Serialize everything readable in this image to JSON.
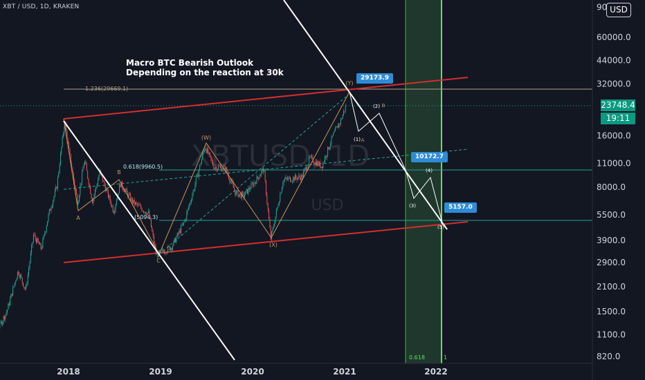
{
  "header": {
    "symbol": "XBT / USD, 1D, KRAKEN",
    "headline_line1": "Macro BTC Bearish Outlook",
    "headline_line2": "Depending on the reaction at 30k",
    "currency_button": "USD",
    "watermark_symbol": "XBTUSD, 1D",
    "watermark_currency": "USD"
  },
  "price_axis": {
    "ticks": [
      "820.0",
      "1100.0",
      "1500.0",
      "2100.0",
      "2900.0",
      "3900.0",
      "5500.0",
      "8000.0",
      "11000.0",
      "16000.0",
      "23748.4",
      "32000.0",
      "44000.0",
      "60000.0",
      "90000.0"
    ],
    "last_price": "23748.4",
    "countdown": "19:11"
  },
  "time_axis": {
    "ticks": [
      "2018",
      "2019",
      "2020",
      "2021",
      "2022"
    ]
  },
  "callouts": {
    "top": "29173.9",
    "mid": "10172.7",
    "low": "5157.0"
  },
  "fib_labels": {
    "ext": "1.236(29669.1)",
    "ret618": "0.618(9960.5)",
    "ret_low": "(5094.3)",
    "time_a": "0.618",
    "time_b": "1"
  },
  "wave_labels": {
    "Y": "(Y)",
    "W": "(W)",
    "X": "(X)",
    "A1": "A",
    "B1": "B",
    "C1": "C",
    "w1": "(1)",
    "w2": "(2)",
    "w3": "(3)",
    "w4": "(4)",
    "w5": "(5)",
    "wA": "A",
    "wB": "B"
  },
  "colors": {
    "background": "#131722",
    "channel": "#d32f2f",
    "fib_line": "#26a69a",
    "time_zone": "#4caf50",
    "wave": "#c8955a",
    "callout": "#2f8bd6",
    "up_candle": "#26a69a",
    "down_candle": "#ef5350"
  },
  "chart_data": {
    "type": "line",
    "title": "Macro BTC Bearish Outlook",
    "xlabel": "",
    "ylabel": "",
    "y_scale": "log",
    "ylim": [
      800,
      100000
    ],
    "x_range": [
      "2017-01-01",
      "2022-04-15"
    ],
    "grid": false,
    "series": [
      {
        "values": [
          {
            "x": "2017-01-01",
            "y": 1000
          },
          {
            "x": "2017-03-15",
            "y": 1100
          },
          {
            "x": "2017-05-01",
            "y": 1500
          },
          {
            "x": "2017-06-15",
            "y": 2600
          },
          {
            "x": "2017-07-15",
            "y": 2000
          },
          {
            "x": "2017-08-15",
            "y": 4200
          },
          {
            "x": "2017-09-15",
            "y": 3500
          },
          {
            "x": "2017-10-15",
            "y": 5600
          },
          {
            "x": "2017-11-15",
            "y": 8000
          },
          {
            "x": "2017-12-17",
            "y": 19500
          },
          {
            "x": "2018-01-01",
            "y": 13500
          },
          {
            "x": "2018-02-06",
            "y": 6500
          },
          {
            "x": "2018-03-05",
            "y": 11500
          },
          {
            "x": "2018-04-06",
            "y": 6600
          },
          {
            "x": "2018-05-05",
            "y": 9800
          },
          {
            "x": "2018-06-29",
            "y": 5800
          },
          {
            "x": "2018-07-25",
            "y": 8400
          },
          {
            "x": "2018-09-15",
            "y": 6500
          },
          {
            "x": "2018-11-15",
            "y": 5600
          },
          {
            "x": "2018-12-15",
            "y": 3200
          },
          {
            "x": "2019-02-15",
            "y": 3600
          },
          {
            "x": "2019-04-05",
            "y": 5000
          },
          {
            "x": "2019-05-15",
            "y": 8000
          },
          {
            "x": "2019-06-26",
            "y": 13800
          },
          {
            "x": "2019-08-01",
            "y": 10500
          },
          {
            "x": "2019-09-15",
            "y": 10300
          },
          {
            "x": "2019-10-25",
            "y": 7400
          },
          {
            "x": "2019-11-25",
            "y": 7100
          },
          {
            "x": "2020-01-15",
            "y": 8800
          },
          {
            "x": "2020-02-14",
            "y": 10300
          },
          {
            "x": "2020-03-13",
            "y": 4000
          },
          {
            "x": "2020-05-01",
            "y": 8800
          },
          {
            "x": "2020-07-15",
            "y": 9200
          },
          {
            "x": "2020-08-15",
            "y": 11800
          },
          {
            "x": "2020-10-01",
            "y": 10600
          },
          {
            "x": "2020-11-15",
            "y": 16000
          },
          {
            "x": "2020-12-15",
            "y": 19500
          },
          {
            "x": "2021-01-04",
            "y": 23748.4
          }
        ]
      },
      {
        "values": [
          {
            "x": "2021-01-08",
            "y": 29173.9
          },
          {
            "x": "2021-02-01",
            "y": 16500
          },
          {
            "x": "2021-03-15",
            "y": 21000
          },
          {
            "x": "2021-07-15",
            "y": 10172.7
          },
          {
            "x": "2021-09-15",
            "y": 7000
          },
          {
            "x": "2021-11-01",
            "y": 9500
          },
          {
            "x": "2022-01-01",
            "y": 5157.0
          }
        ]
      }
    ]
  }
}
